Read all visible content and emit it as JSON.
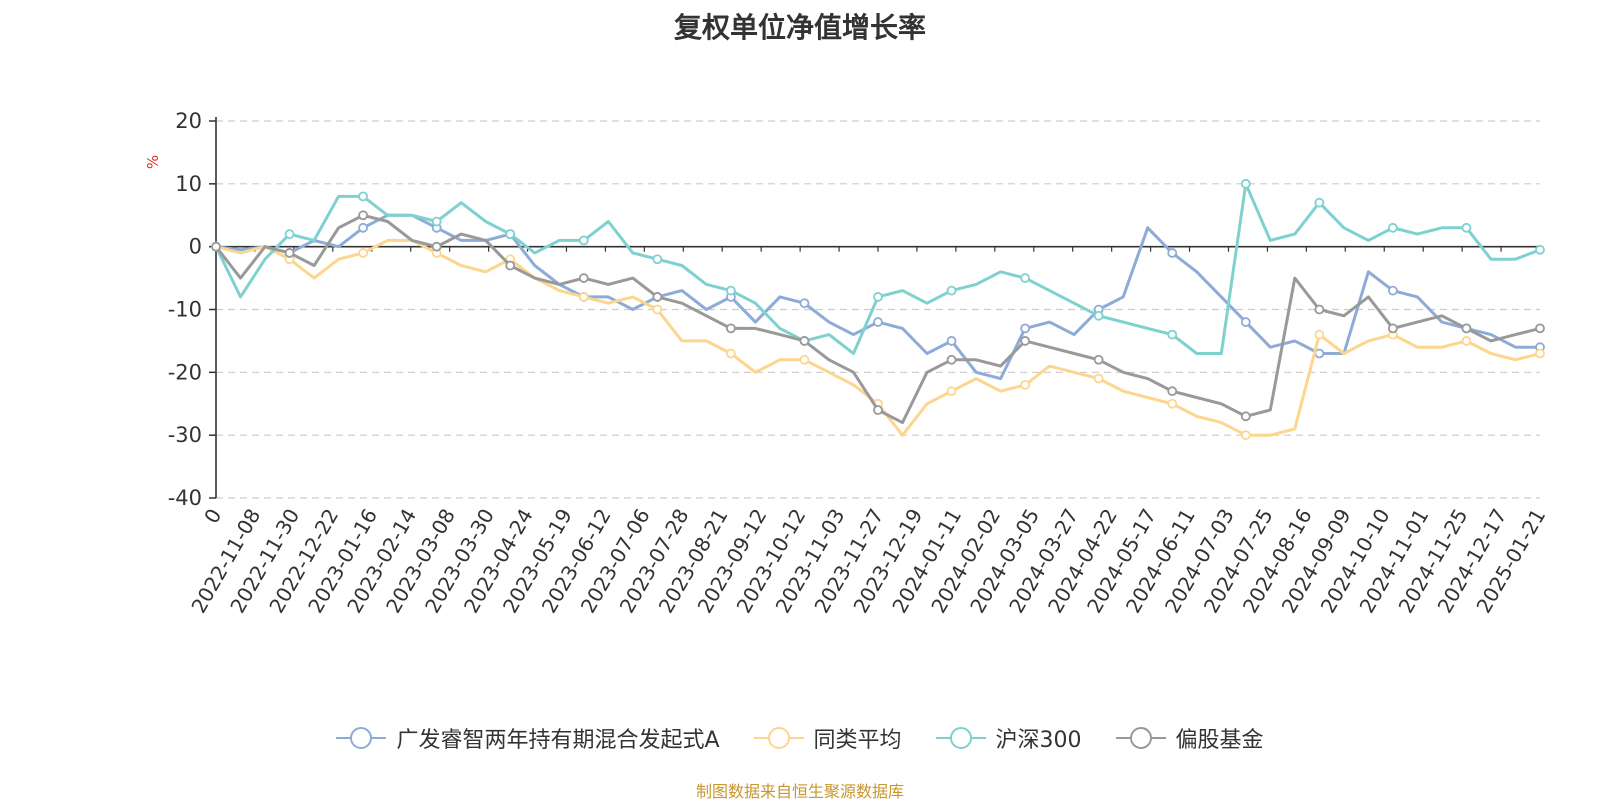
{
  "title": "复权单位净值增长率",
  "source": "制图数据来自恒生聚源数据库",
  "colors": {
    "fund": "#8eabd8",
    "peer": "#fcd68e",
    "index": "#7fd1d0",
    "stock": "#999999",
    "source_text": "#c8962e"
  },
  "chart_data": {
    "type": "line",
    "title": "复权单位净值增长率",
    "ylabel": "%",
    "xlabel": "",
    "ylim": [
      -40,
      20
    ],
    "yticks": [
      20,
      10,
      0,
      -10,
      -20,
      -30,
      -40
    ],
    "grid": true,
    "legend_position": "bottom",
    "x_tick_labels": [
      "0",
      "2022-11-08",
      "2022-11-30",
      "2022-12-22",
      "2023-01-16",
      "2023-02-14",
      "2023-03-08",
      "2023-03-30",
      "2023-04-24",
      "2023-05-19",
      "2023-06-12",
      "2023-07-06",
      "2023-07-28",
      "2023-08-21",
      "2023-09-12",
      "2023-10-12",
      "2023-11-03",
      "2023-11-27",
      "2023-12-19",
      "2024-01-11",
      "2024-02-02",
      "2024-03-05",
      "2024-03-27",
      "2024-04-22",
      "2024-05-17",
      "2024-06-11",
      "2024-07-03",
      "2024-07-25",
      "2024-08-16",
      "2024-09-09",
      "2024-10-10",
      "2024-11-01",
      "2024-11-25",
      "2024-12-17",
      "2025-01-21"
    ],
    "series": [
      {
        "name": "广发睿智两年持有期混合发起式A",
        "color": "#8eabd8",
        "values": [
          0,
          -0.5,
          0,
          -1,
          1,
          0,
          3,
          5,
          5,
          3,
          1,
          1,
          2,
          -3,
          -6,
          -8,
          -8,
          -10,
          -8,
          -7,
          -10,
          -8,
          -12,
          -8,
          -9,
          -12,
          -14,
          -12,
          -13,
          -17,
          -15,
          -20,
          -21,
          -13,
          -12,
          -14,
          -10,
          -8,
          3,
          -1,
          -4,
          -8,
          -12,
          -16,
          -15,
          -17,
          -17,
          -4,
          -7,
          -8,
          -12,
          -13,
          -14,
          -16,
          -16
        ]
      },
      {
        "name": "同类平均",
        "color": "#fcd68e",
        "values": [
          0,
          -1,
          0,
          -2,
          -5,
          -2,
          -1,
          1,
          1,
          -1,
          -3,
          -4,
          -2,
          -5,
          -7,
          -8,
          -9,
          -8,
          -10,
          -15,
          -15,
          -17,
          -20,
          -18,
          -18,
          -20,
          -22,
          -25,
          -30,
          -25,
          -23,
          -21,
          -23,
          -22,
          -19,
          -20,
          -21,
          -23,
          -24,
          -25,
          -27,
          -28,
          -30,
          -30,
          -29,
          -14,
          -17,
          -15,
          -14,
          -16,
          -16,
          -15,
          -17,
          -18,
          -17
        ]
      },
      {
        "name": "沪深300",
        "color": "#7fd1d0",
        "values": [
          0,
          -8,
          -2,
          2,
          1,
          8,
          8,
          5,
          5,
          4,
          7,
          4,
          2,
          -1,
          1,
          1,
          4,
          -1,
          -2,
          -3,
          -6,
          -7,
          -9,
          -13,
          -15,
          -14,
          -17,
          -8,
          -7,
          -9,
          -7,
          -6,
          -4,
          -5,
          -7,
          -9,
          -11,
          -12,
          -13,
          -14,
          -17,
          -17,
          10,
          1,
          2,
          7,
          3,
          1,
          3,
          2,
          3,
          3,
          -2,
          -2,
          -0.5
        ]
      },
      {
        "name": "偏股基金",
        "color": "#999999",
        "values": [
          0,
          -5,
          0,
          -1,
          -3,
          3,
          5,
          4,
          1,
          0,
          2,
          1,
          -3,
          -5,
          -6,
          -5,
          -6,
          -5,
          -8,
          -9,
          -11,
          -13,
          -13,
          -14,
          -15,
          -18,
          -20,
          -26,
          -28,
          -20,
          -18,
          -18,
          -19,
          -15,
          -16,
          -17,
          -18,
          -20,
          -21,
          -23,
          -24,
          -25,
          -27,
          -26,
          -5,
          -10,
          -11,
          -8,
          -13,
          -12,
          -11,
          -13,
          -15,
          -14,
          -13
        ]
      }
    ]
  }
}
